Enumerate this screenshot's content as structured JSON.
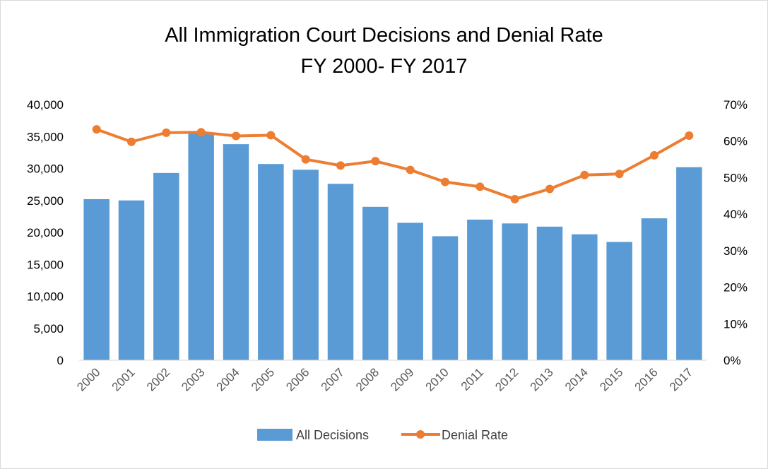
{
  "chart_data": {
    "type": "bar+line",
    "title": "All Immigration Court Decisions and Denial Rate",
    "subtitle": "FY 2000- FY 2017",
    "categories": [
      "2000",
      "2001",
      "2002",
      "2003",
      "2004",
      "2005",
      "2006",
      "2007",
      "2008",
      "2009",
      "2010",
      "2011",
      "2012",
      "2013",
      "2014",
      "2015",
      "2016",
      "2017"
    ],
    "series": [
      {
        "name": "All Decisions",
        "type": "bar",
        "axis": "left",
        "color": "#5b9bd5",
        "values": [
          25200,
          25000,
          29300,
          35500,
          33800,
          30700,
          29800,
          27600,
          24000,
          21500,
          19400,
          22000,
          21400,
          20900,
          19700,
          18500,
          22200,
          30200
        ]
      },
      {
        "name": "Denial Rate",
        "type": "line",
        "axis": "right",
        "color": "#ed7d31",
        "values": [
          63.2,
          59.8,
          62.3,
          62.4,
          61.4,
          61.6,
          55.0,
          53.3,
          54.5,
          52.1,
          48.8,
          47.5,
          44.1,
          46.9,
          50.7,
          51.0,
          56.1,
          61.5
        ]
      }
    ],
    "y_left": {
      "ylim": [
        0,
        40000
      ],
      "ticks": [
        "0",
        "5,000",
        "10,000",
        "15,000",
        "20,000",
        "25,000",
        "30,000",
        "35,000",
        "40,000"
      ]
    },
    "y_right": {
      "ylim": [
        0,
        70
      ],
      "ticks": [
        "0%",
        "10%",
        "20%",
        "30%",
        "40%",
        "50%",
        "60%",
        "70%"
      ]
    },
    "legend": {
      "position": "bottom",
      "entries": [
        "All Decisions",
        "Denial Rate"
      ]
    }
  }
}
